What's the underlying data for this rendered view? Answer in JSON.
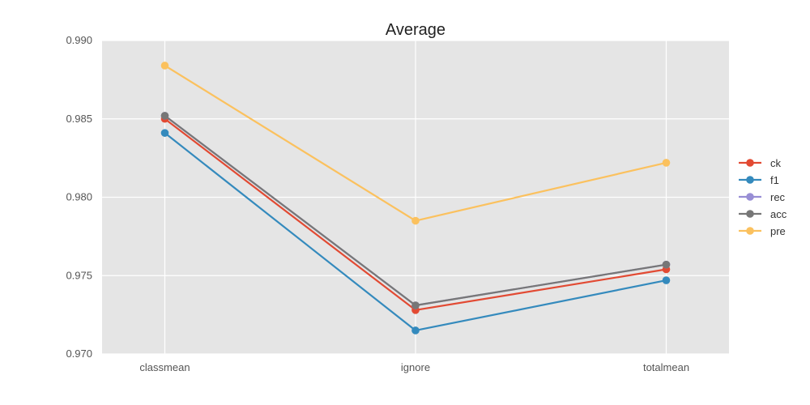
{
  "chart_data": {
    "type": "line",
    "title": "Average",
    "xlabel": "",
    "ylabel": "",
    "categories": [
      "classmean",
      "ignore",
      "totalmean"
    ],
    "ylim": [
      0.97,
      0.99
    ],
    "yticks": [
      "0.970",
      "0.975",
      "0.980",
      "0.985",
      "0.990"
    ],
    "grid": true,
    "legend_position": "right",
    "series": [
      {
        "name": "ck",
        "color": "#E24A33",
        "values": [
          0.985,
          0.9728,
          0.9754
        ]
      },
      {
        "name": "f1",
        "color": "#348ABD",
        "values": [
          0.9841,
          0.9715,
          0.9747
        ]
      },
      {
        "name": "rec",
        "color": "#988ED5",
        "values": [
          0.9852,
          0.9731,
          0.9757
        ]
      },
      {
        "name": "acc",
        "color": "#777777",
        "values": [
          0.9852,
          0.9731,
          0.9757
        ]
      },
      {
        "name": "pre",
        "color": "#FBC15E",
        "values": [
          0.9884,
          0.9785,
          0.9822
        ]
      }
    ]
  }
}
